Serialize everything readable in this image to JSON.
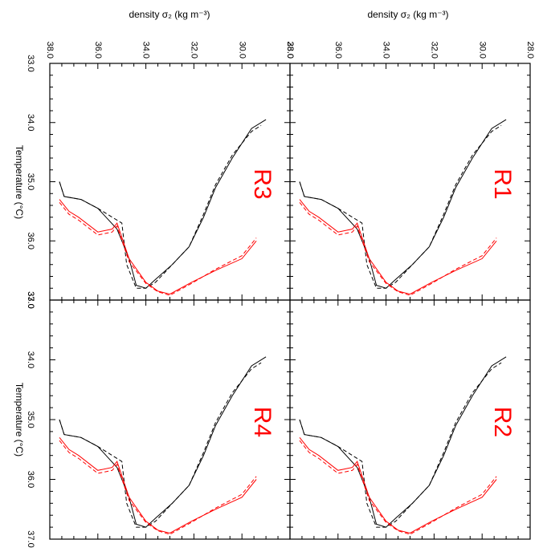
{
  "figure": {
    "top_title": "density σ₂ (kg m⁻³)",
    "side_title": "Temperature (°C)"
  },
  "colors": {
    "black_series": "#000000",
    "red_series": "#ff0000",
    "label": "#ff0000"
  },
  "chart_data": {
    "type": "line",
    "description_axes": "figure is rotated 90°: density on top axis (reversed), temperature on left axis",
    "x_axis": {
      "label": "density σ₂ (kg m⁻³)",
      "ticks": [
        "38.0",
        "36.0",
        "34.0",
        "32.0",
        "30.0",
        "28.0"
      ],
      "range": [
        38.0,
        28.0
      ]
    },
    "y_axis": {
      "label": "Temperature (°C)",
      "ticks": [
        "33.0",
        "34.0",
        "35.0",
        "36.0",
        "37.0"
      ],
      "range": [
        33.0,
        37.0
      ]
    },
    "panels": [
      {
        "label": "R3",
        "position": "top-left"
      },
      {
        "label": "R1",
        "position": "top-right"
      },
      {
        "label": "R4",
        "position": "bottom-left"
      },
      {
        "label": "R2",
        "position": "bottom-right"
      }
    ],
    "series": [
      {
        "color": "black",
        "style": "solid",
        "points": [
          [
            37.6,
            35.0
          ],
          [
            37.4,
            35.25
          ],
          [
            36.7,
            35.3
          ],
          [
            36.0,
            35.45
          ],
          [
            35.2,
            35.8
          ],
          [
            34.7,
            36.3
          ],
          [
            34.4,
            36.75
          ],
          [
            34.0,
            36.8
          ],
          [
            33.6,
            36.65
          ],
          [
            32.9,
            36.4
          ],
          [
            32.2,
            36.1
          ],
          [
            31.6,
            35.6
          ],
          [
            31.1,
            35.1
          ],
          [
            30.4,
            34.6
          ],
          [
            29.6,
            34.1
          ],
          [
            29.0,
            33.95
          ]
        ]
      },
      {
        "color": "black",
        "style": "dashed",
        "points": [
          [
            37.6,
            35.0
          ],
          [
            37.4,
            35.25
          ],
          [
            36.7,
            35.3
          ],
          [
            36.0,
            35.45
          ],
          [
            35.0,
            35.7
          ],
          [
            34.8,
            36.4
          ],
          [
            34.4,
            36.8
          ],
          [
            34.0,
            36.8
          ],
          [
            33.6,
            36.7
          ],
          [
            32.9,
            36.4
          ],
          [
            32.2,
            36.1
          ],
          [
            31.6,
            35.55
          ],
          [
            31.1,
            35.05
          ],
          [
            30.4,
            34.55
          ],
          [
            29.6,
            34.15
          ],
          [
            29.2,
            34.05
          ]
        ]
      },
      {
        "color": "red",
        "style": "solid",
        "points": [
          [
            37.6,
            35.3
          ],
          [
            37.2,
            35.5
          ],
          [
            36.8,
            35.6
          ],
          [
            36.0,
            35.85
          ],
          [
            35.4,
            35.8
          ],
          [
            35.2,
            35.7
          ],
          [
            34.7,
            36.3
          ],
          [
            34.0,
            36.7
          ],
          [
            33.5,
            36.85
          ],
          [
            33.0,
            36.9
          ],
          [
            32.1,
            36.7
          ],
          [
            31.1,
            36.5
          ],
          [
            30.0,
            36.3
          ],
          [
            29.4,
            36.0
          ]
        ]
      },
      {
        "color": "red",
        "style": "dashed",
        "points": [
          [
            37.6,
            35.35
          ],
          [
            37.2,
            35.55
          ],
          [
            36.8,
            35.65
          ],
          [
            36.0,
            35.9
          ],
          [
            35.4,
            35.85
          ],
          [
            35.2,
            35.75
          ],
          [
            34.7,
            36.35
          ],
          [
            34.0,
            36.72
          ],
          [
            33.5,
            36.86
          ],
          [
            33.0,
            36.92
          ],
          [
            32.1,
            36.72
          ],
          [
            31.1,
            36.48
          ],
          [
            30.0,
            36.25
          ],
          [
            29.4,
            35.95
          ]
        ]
      }
    ]
  }
}
